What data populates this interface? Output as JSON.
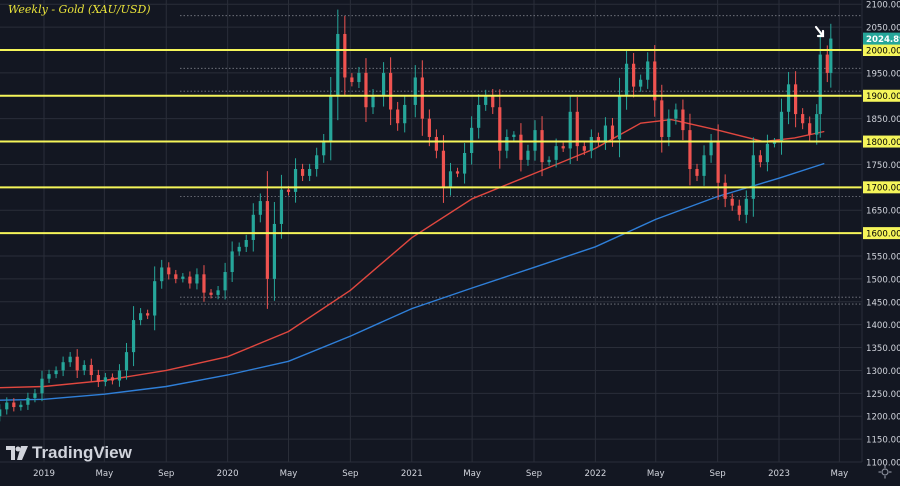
{
  "header": {
    "title": "Weekly - Gold (XAU/USD)"
  },
  "branding": {
    "logo_text": "TradingView"
  },
  "colors": {
    "background": "#131722",
    "grid": "#2a2e39",
    "axis_text": "#d1d4dc",
    "up": "#26a69a",
    "down": "#ef5350",
    "level_line": "#f5f55a",
    "ma_short": "#e0473f",
    "ma_long": "#2f7fd8",
    "current_price": "#26a69a",
    "title": "#e8e23a"
  },
  "chart_data": {
    "type": "candlestick",
    "timeframe": "weekly",
    "ylim": [
      1100,
      2100
    ],
    "y_ticks": [
      1100,
      1150,
      1200,
      1250,
      1300,
      1350,
      1400,
      1450,
      1500,
      1550,
      1600,
      1650,
      1700,
      1750,
      1800,
      1850,
      1900,
      1950,
      2000,
      2050,
      2100
    ],
    "x_ticks": [
      "2019",
      "May",
      "Sep",
      "2020",
      "May",
      "Sep",
      "2021",
      "May",
      "Sep",
      "2022",
      "May",
      "Sep",
      "2023",
      "May"
    ],
    "x_tick_dates": [
      "2019-01",
      "2019-05",
      "2019-09",
      "2020-01",
      "2020-05",
      "2020-09",
      "2021-01",
      "2021-05",
      "2021-09",
      "2022-01",
      "2022-05",
      "2022-09",
      "2023-01",
      "2023-05"
    ],
    "current_price": 2024.895,
    "horizontal_levels": [
      2000,
      1900,
      1800,
      1700,
      1600
    ],
    "dotted_levels": [
      2075,
      1960,
      1910,
      1680,
      1460,
      1445
    ],
    "moving_averages": [
      {
        "color": "#e0473f",
        "points": [
          [
            "2018-10",
            1262
          ],
          [
            "2019-01",
            1265
          ],
          [
            "2019-05",
            1278
          ],
          [
            "2019-09",
            1300
          ],
          [
            "2020-01",
            1330
          ],
          [
            "2020-05",
            1385
          ],
          [
            "2020-09",
            1475
          ],
          [
            "2021-01",
            1590
          ],
          [
            "2021-05",
            1675
          ],
          [
            "2021-09",
            1730
          ],
          [
            "2022-01",
            1785
          ],
          [
            "2022-04",
            1840
          ],
          [
            "2022-06",
            1848
          ],
          [
            "2022-09",
            1825
          ],
          [
            "2022-12",
            1800
          ],
          [
            "2023-02",
            1808
          ],
          [
            "2023-04",
            1822
          ]
        ]
      },
      {
        "color": "#2f7fd8",
        "points": [
          [
            "2018-10",
            1235
          ],
          [
            "2019-01",
            1237
          ],
          [
            "2019-05",
            1248
          ],
          [
            "2019-09",
            1265
          ],
          [
            "2020-01",
            1290
          ],
          [
            "2020-05",
            1320
          ],
          [
            "2020-09",
            1375
          ],
          [
            "2021-01",
            1435
          ],
          [
            "2021-05",
            1480
          ],
          [
            "2021-09",
            1525
          ],
          [
            "2022-01",
            1570
          ],
          [
            "2022-05",
            1630
          ],
          [
            "2022-09",
            1680
          ],
          [
            "2023-01",
            1720
          ],
          [
            "2023-04",
            1752
          ]
        ]
      }
    ],
    "candles": [
      [
        "2018-10-05",
        1200,
        1215
      ],
      [
        "2018-10-19",
        1215,
        1230
      ],
      [
        "2018-11-02",
        1230,
        1220
      ],
      [
        "2018-11-16",
        1220,
        1225
      ],
      [
        "2018-11-30",
        1225,
        1240
      ],
      [
        "2018-12-14",
        1240,
        1250
      ],
      [
        "2018-12-28",
        1250,
        1282
      ],
      [
        "2019-01-11",
        1282,
        1292
      ],
      [
        "2019-01-25",
        1292,
        1300
      ],
      [
        "2019-02-08",
        1300,
        1318
      ],
      [
        "2019-02-22",
        1318,
        1330
      ],
      [
        "2019-03-08",
        1330,
        1300
      ],
      [
        "2019-03-22",
        1300,
        1312
      ],
      [
        "2019-04-05",
        1312,
        1290
      ],
      [
        "2019-04-19",
        1290,
        1275
      ],
      [
        "2019-05-03",
        1275,
        1285
      ],
      [
        "2019-05-17",
        1285,
        1278
      ],
      [
        "2019-05-31",
        1278,
        1300
      ],
      [
        "2019-06-14",
        1300,
        1340
      ],
      [
        "2019-06-28",
        1340,
        1410
      ],
      [
        "2019-07-12",
        1410,
        1425
      ],
      [
        "2019-07-26",
        1425,
        1420
      ],
      [
        "2019-08-09",
        1420,
        1495
      ],
      [
        "2019-08-23",
        1495,
        1525
      ],
      [
        "2019-09-06",
        1525,
        1510
      ],
      [
        "2019-09-20",
        1510,
        1500
      ],
      [
        "2019-10-04",
        1500,
        1505
      ],
      [
        "2019-10-18",
        1505,
        1490
      ],
      [
        "2019-11-01",
        1490,
        1510
      ],
      [
        "2019-11-15",
        1510,
        1470
      ],
      [
        "2019-11-29",
        1470,
        1465
      ],
      [
        "2019-12-13",
        1465,
        1475
      ],
      [
        "2019-12-27",
        1475,
        1515
      ],
      [
        "2020-01-10",
        1515,
        1560
      ],
      [
        "2020-01-24",
        1560,
        1570
      ],
      [
        "2020-02-07",
        1570,
        1585
      ],
      [
        "2020-02-21",
        1585,
        1640
      ],
      [
        "2020-03-06",
        1640,
        1670
      ],
      [
        "2020-03-20",
        1670,
        1500
      ],
      [
        "2020-04-03",
        1500,
        1620
      ],
      [
        "2020-04-17",
        1620,
        1695
      ],
      [
        "2020-05-01",
        1695,
        1690
      ],
      [
        "2020-05-15",
        1690,
        1740
      ],
      [
        "2020-05-29",
        1740,
        1725
      ],
      [
        "2020-06-12",
        1725,
        1740
      ],
      [
        "2020-06-26",
        1740,
        1770
      ],
      [
        "2020-07-10",
        1770,
        1800
      ],
      [
        "2020-07-24",
        1800,
        1900
      ],
      [
        "2020-08-07",
        1900,
        2035
      ],
      [
        "2020-08-21",
        2035,
        1940
      ],
      [
        "2020-09-04",
        1940,
        1930
      ],
      [
        "2020-09-18",
        1930,
        1950
      ],
      [
        "2020-10-02",
        1950,
        1875
      ],
      [
        "2020-10-16",
        1875,
        1900
      ],
      [
        "2020-11-06",
        1900,
        1950
      ],
      [
        "2020-11-20",
        1950,
        1870
      ],
      [
        "2020-12-04",
        1870,
        1840
      ],
      [
        "2020-12-18",
        1840,
        1880
      ],
      [
        "2021-01-08",
        1880,
        1940
      ],
      [
        "2021-01-22",
        1940,
        1850
      ],
      [
        "2021-02-05",
        1850,
        1810
      ],
      [
        "2021-02-19",
        1810,
        1780
      ],
      [
        "2021-03-05",
        1780,
        1700
      ],
      [
        "2021-03-19",
        1700,
        1735
      ],
      [
        "2021-04-02",
        1735,
        1730
      ],
      [
        "2021-04-16",
        1730,
        1775
      ],
      [
        "2021-04-30",
        1775,
        1830
      ],
      [
        "2021-05-14",
        1830,
        1880
      ],
      [
        "2021-05-28",
        1880,
        1900
      ],
      [
        "2021-06-11",
        1900,
        1875
      ],
      [
        "2021-06-25",
        1875,
        1780
      ],
      [
        "2021-07-09",
        1780,
        1810
      ],
      [
        "2021-07-23",
        1810,
        1815
      ],
      [
        "2021-08-06",
        1815,
        1760
      ],
      [
        "2021-08-20",
        1760,
        1780
      ],
      [
        "2021-09-03",
        1780,
        1825
      ],
      [
        "2021-09-17",
        1825,
        1755
      ],
      [
        "2021-10-01",
        1755,
        1760
      ],
      [
        "2021-10-15",
        1760,
        1790
      ],
      [
        "2021-10-29",
        1790,
        1785
      ],
      [
        "2021-11-12",
        1785,
        1865
      ],
      [
        "2021-11-26",
        1865,
        1790
      ],
      [
        "2021-12-10",
        1790,
        1780
      ],
      [
        "2021-12-24",
        1780,
        1810
      ],
      [
        "2022-01-07",
        1810,
        1800
      ],
      [
        "2022-01-21",
        1800,
        1835
      ],
      [
        "2022-02-04",
        1835,
        1805
      ],
      [
        "2022-02-18",
        1805,
        1900
      ],
      [
        "2022-03-04",
        1900,
        1970
      ],
      [
        "2022-03-18",
        1970,
        1920
      ],
      [
        "2022-04-01",
        1920,
        1935
      ],
      [
        "2022-04-15",
        1935,
        1975
      ],
      [
        "2022-04-29",
        1975,
        1890
      ],
      [
        "2022-05-13",
        1890,
        1810
      ],
      [
        "2022-05-27",
        1810,
        1850
      ],
      [
        "2022-06-10",
        1850,
        1870
      ],
      [
        "2022-06-24",
        1870,
        1825
      ],
      [
        "2022-07-08",
        1825,
        1740
      ],
      [
        "2022-07-22",
        1740,
        1725
      ],
      [
        "2022-08-05",
        1725,
        1770
      ],
      [
        "2022-08-19",
        1770,
        1800
      ],
      [
        "2022-09-02",
        1800,
        1710
      ],
      [
        "2022-09-16",
        1710,
        1675
      ],
      [
        "2022-09-30",
        1675,
        1660
      ],
      [
        "2022-10-14",
        1660,
        1640
      ],
      [
        "2022-10-28",
        1640,
        1675
      ],
      [
        "2022-11-11",
        1675,
        1770
      ],
      [
        "2022-11-25",
        1770,
        1755
      ],
      [
        "2022-12-09",
        1755,
        1795
      ],
      [
        "2022-12-23",
        1795,
        1800
      ],
      [
        "2023-01-06",
        1800,
        1865
      ],
      [
        "2023-01-20",
        1865,
        1925
      ],
      [
        "2023-02-03",
        1925,
        1860
      ],
      [
        "2023-02-17",
        1860,
        1840
      ],
      [
        "2023-03-03",
        1840,
        1815
      ],
      [
        "2023-03-17",
        1815,
        1860
      ],
      [
        "2023-03-24",
        1860,
        1990
      ],
      [
        "2023-04-07",
        1990,
        1950
      ],
      [
        "2023-04-14",
        1950,
        2025
      ]
    ]
  }
}
